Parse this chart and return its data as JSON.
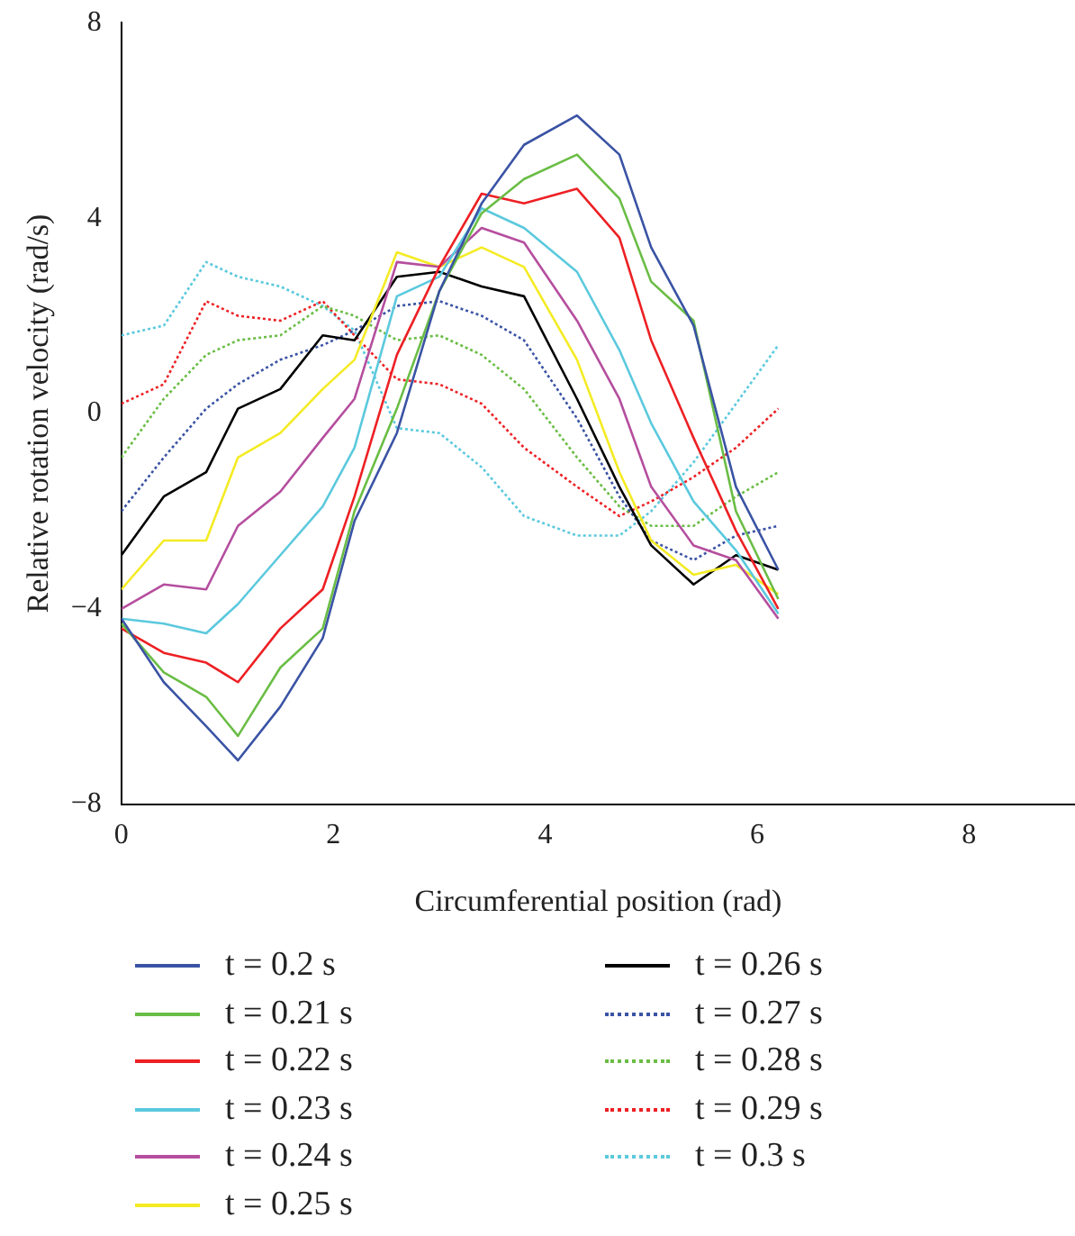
{
  "chart_data": {
    "type": "line",
    "xlabel": "Circumferential position (rad)",
    "ylabel": "Relative rotation velocity (rad/s)",
    "x": [
      0,
      0.4,
      0.8,
      1.1,
      1.5,
      1.9,
      2.2,
      2.6,
      3.0,
      3.4,
      3.8,
      4.3,
      4.7,
      5.0,
      5.4,
      5.8,
      6.2
    ],
    "xlim": [
      0,
      9
    ],
    "xticks": [
      0,
      2,
      4,
      6,
      8
    ],
    "ylim": [
      -8,
      8
    ],
    "yticks": [
      -8,
      -4,
      0,
      4,
      8
    ],
    "grid": false,
    "legend": "bottom",
    "series": [
      {
        "name": "t = 0.2 s",
        "color": "#3a53a4",
        "line_style": "solid",
        "values": [
          -4.2,
          -5.5,
          -6.4,
          -7.1,
          -6.0,
          -4.6,
          -2.2,
          -0.4,
          2.5,
          4.3,
          5.5,
          6.1,
          5.3,
          3.4,
          1.8,
          -1.5,
          -3.2
        ]
      },
      {
        "name": "t = 0.21 s",
        "color": "#6abd45",
        "line_style": "solid",
        "values": [
          -4.3,
          -5.3,
          -5.8,
          -6.6,
          -5.2,
          -4.4,
          -2.0,
          0.1,
          2.5,
          4.1,
          4.8,
          5.3,
          4.4,
          2.7,
          1.9,
          -2.0,
          -3.8
        ]
      },
      {
        "name": "t = 0.22 s",
        "color": "#ed2024",
        "line_style": "solid",
        "values": [
          -4.4,
          -4.9,
          -5.1,
          -5.5,
          -4.4,
          -3.6,
          -1.7,
          1.2,
          3.0,
          4.5,
          4.3,
          4.6,
          3.6,
          1.5,
          -0.5,
          -2.4,
          -4.0
        ]
      },
      {
        "name": "t = 0.23 s",
        "color": "#5bc9dd",
        "line_style": "solid",
        "values": [
          -4.2,
          -4.3,
          -4.5,
          -3.9,
          -2.9,
          -1.9,
          -0.7,
          2.4,
          2.8,
          4.2,
          3.8,
          2.9,
          1.3,
          -0.2,
          -1.8,
          -2.8,
          -4.1
        ]
      },
      {
        "name": "t = 0.24 s",
        "color": "#b54e9e",
        "line_style": "solid",
        "values": [
          -4.0,
          -3.5,
          -3.6,
          -2.3,
          -1.6,
          -0.5,
          0.3,
          3.1,
          3.0,
          3.8,
          3.5,
          1.9,
          0.3,
          -1.5,
          -2.7,
          -3.0,
          -4.2
        ]
      },
      {
        "name": "t = 0.25 s",
        "color": "#f4eb23",
        "line_style": "solid",
        "values": [
          -3.6,
          -2.6,
          -2.6,
          -0.9,
          -0.4,
          0.5,
          1.1,
          3.3,
          3.0,
          3.4,
          3.0,
          1.1,
          -1.2,
          -2.6,
          -3.3,
          -3.1,
          -3.7
        ]
      },
      {
        "name": "t = 0.26 s",
        "color": "#000000",
        "line_style": "solid",
        "values": [
          -2.9,
          -1.7,
          -1.2,
          0.1,
          0.5,
          1.6,
          1.5,
          2.8,
          2.9,
          2.6,
          2.4,
          0.3,
          -1.5,
          -2.7,
          -3.5,
          -2.9,
          -3.2
        ]
      },
      {
        "name": "t = 0.27 s",
        "color": "#3a53a4",
        "line_style": "dotted",
        "values": [
          -2.0,
          -0.9,
          0.1,
          0.6,
          1.1,
          1.4,
          1.7,
          2.2,
          2.3,
          2.0,
          1.5,
          -0.1,
          -1.7,
          -2.6,
          -3.0,
          -2.5,
          -2.3
        ]
      },
      {
        "name": "t = 0.28 s",
        "color": "#6abd45",
        "line_style": "dotted",
        "values": [
          -0.9,
          0.3,
          1.2,
          1.5,
          1.6,
          2.2,
          2.0,
          1.5,
          1.6,
          1.2,
          0.5,
          -0.9,
          -1.9,
          -2.3,
          -2.3,
          -1.7,
          -1.2
        ]
      },
      {
        "name": "t = 0.29 s",
        "color": "#ed2024",
        "line_style": "dotted",
        "values": [
          0.2,
          0.6,
          2.3,
          2.0,
          1.9,
          2.3,
          1.6,
          0.7,
          0.6,
          0.2,
          -0.7,
          -1.5,
          -2.1,
          -1.8,
          -1.3,
          -0.7,
          0.1
        ]
      },
      {
        "name": "t = 0.3 s",
        "color": "#5bc9dd",
        "line_style": "dotted",
        "values": [
          1.6,
          1.8,
          3.1,
          2.8,
          2.6,
          2.2,
          1.7,
          -0.3,
          -0.4,
          -1.1,
          -2.1,
          -2.5,
          -2.5,
          -2.0,
          -1.0,
          0.2,
          1.4
        ]
      }
    ]
  }
}
